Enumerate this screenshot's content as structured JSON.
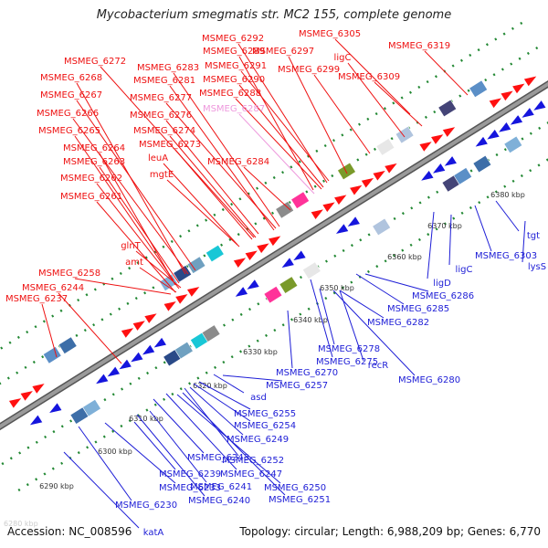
{
  "title": "Mycobacterium smegmatis str. MC2 155, complete genome",
  "footer": {
    "accession": "Accession: NC_008596",
    "topology": "Topology: circular",
    "length": "Length: 6,988,209 bp",
    "genes": "Genes: 6,770"
  },
  "colors": {
    "forward_label": "#ee1111",
    "reverse_label": "#1d1dd6",
    "highlight_label": "#ee99dd",
    "backbone": "#9a9a9a",
    "tick_dots": "#228833",
    "forward_arrow": "#ff1010",
    "reverse_arrow": "#1515dd"
  },
  "scale_labels": [
    "6290 kbp",
    "6300 kbp",
    "6310 kbp",
    "6320 kbp",
    "6330 kbp",
    "6340 kbp",
    "6350 kbp",
    "6360 kbp",
    "6370 kbp",
    "6380 kbp"
  ],
  "faded_scale_label": "6280 kbp",
  "forward_genes": [
    "MSMEG_6305",
    "MSMEG_6319",
    "MSMEG_6292",
    "MSMEG_6297",
    "ligC",
    "MSMEG_6289",
    "MSMEG_6272",
    "MSMEG_6283",
    "MSMEG_6291",
    "MSMEG_6299",
    "MSMEG_6309",
    "MSMEG_6268",
    "MSMEG_6281",
    "MSMEG_6290",
    "MSMEG_6267",
    "MSMEG_6277",
    "MSMEG_6288",
    "MSMEG_6266",
    "MSMEG_6276",
    "MSMEG_6287",
    "MSMEG_6265",
    "MSMEG_6274",
    "MSMEG_6273",
    "MSMEG_6264",
    "leuA",
    "MSMEG_6263",
    "mgtE",
    "MSMEG_6284",
    "MSMEG_6262",
    "MSMEG_6261",
    "glnT",
    "amt",
    "MSMEG_6258",
    "MSMEG_6244",
    "MSMEG_6237"
  ],
  "highlighted_gene": "MSMEG_6287",
  "reverse_genes": [
    "tgt",
    "MSMEG_6303",
    "lysS",
    "ligC",
    "ligD",
    "MSMEG_6286",
    "MSMEG_6285",
    "MSMEG_6282",
    "MSMEG_6278",
    "MSMEG_6275",
    "recR",
    "MSMEG_6280",
    "MSMEG_6270",
    "MSMEG_6257",
    "asd",
    "MSMEG_6255",
    "MSMEG_6254",
    "MSMEG_6249",
    "MSMEG_6243",
    "MSMEG_6252",
    "MSMEG_6239",
    "MSMEG_6247",
    "MSMEG_6233",
    "MSMEG_6241",
    "MSMEG_6250",
    "MSMEG_6240",
    "MSMEG_6251",
    "MSMEG_6230",
    "katA"
  ]
}
